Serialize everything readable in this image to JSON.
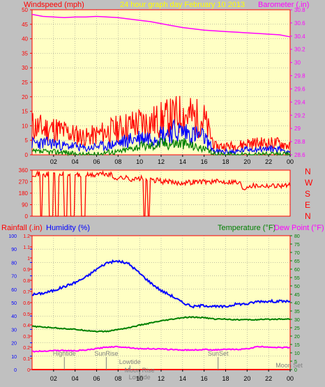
{
  "colors": {
    "background": "#c0c0c0",
    "plot_bg": "#ffffc4",
    "grid": "#808080",
    "wind_max": "#ff0000",
    "wind_avg": "#0000ff",
    "wind_min": "#008000",
    "barometer": "#ff00ff",
    "direction": "#ff0000",
    "humidity": "#0000ff",
    "temperature": "#008000",
    "dew_point": "#ff00ff",
    "rainfall": "#ff0000",
    "events": "#808080",
    "yellow": "#ffff00"
  },
  "header": {
    "windspeed": "Windspeed (mph)",
    "title": "24 hour graph day   February 10 2013",
    "barometer": "Barometer (.in)"
  },
  "labels": {
    "rainfall": "Rainfall (.in)",
    "humidity": "Humidity (%)",
    "temperature": "Temperature (°F)",
    "dew_point": "Dew Point (°F)"
  },
  "compass": [
    "N",
    "W",
    "S",
    "E",
    "N"
  ],
  "chart_data": [
    {
      "type": "line",
      "xlabel": "",
      "x_ticks": [
        "02",
        "04",
        "06",
        "08",
        "10",
        "12",
        "14",
        "16",
        "18",
        "20",
        "22",
        "00"
      ],
      "y_left_ticks": [
        "0",
        "5",
        "10",
        "15",
        "20",
        "25",
        "30",
        "35",
        "40",
        "45",
        "50"
      ],
      "y_left_range": [
        0,
        50
      ],
      "y_right_ticks": [
        "28.6",
        "28.8",
        "29",
        "29.2",
        "29.4",
        "29.6",
        "29.8",
        "30",
        "30.2",
        "30.4",
        "30.6",
        "30.8"
      ],
      "y_right_range": [
        28.6,
        30.8
      ],
      "grid": true,
      "series": [
        {
          "name": "Barometer",
          "axis": "right",
          "x": [
            0,
            1,
            2,
            3,
            4,
            5,
            6,
            7,
            8,
            9,
            10,
            11,
            12,
            13,
            14,
            15,
            16,
            17,
            18,
            19,
            20,
            21,
            22,
            23,
            24
          ],
          "y": [
            30.73,
            30.7,
            30.69,
            30.68,
            30.69,
            30.69,
            30.7,
            30.69,
            30.68,
            30.66,
            30.64,
            30.62,
            30.59,
            30.56,
            30.53,
            30.51,
            30.49,
            30.48,
            30.47,
            30.46,
            30.45,
            30.44,
            30.43,
            30.42,
            30.39
          ]
        },
        {
          "name": "Windspeed high",
          "axis": "left",
          "x": [
            0,
            1,
            2,
            3,
            4,
            5,
            6,
            7,
            8,
            9,
            10,
            11,
            12,
            13,
            14,
            15,
            16,
            17,
            18,
            19,
            20,
            21,
            22,
            23,
            24
          ],
          "y": [
            10,
            9,
            9,
            8,
            7,
            6,
            7,
            8,
            9,
            10,
            11,
            11,
            12,
            13,
            14,
            13,
            12,
            3,
            3,
            3,
            4,
            4,
            4,
            4,
            3
          ]
        },
        {
          "name": "Windspeed average",
          "axis": "left",
          "x": [
            0,
            1,
            2,
            3,
            4,
            5,
            6,
            7,
            8,
            9,
            10,
            11,
            12,
            13,
            14,
            15,
            16,
            17,
            18,
            19,
            20,
            21,
            22,
            23,
            24
          ],
          "y": [
            4,
            4,
            4,
            3,
            3,
            2,
            3,
            3,
            4,
            5,
            6,
            6,
            7,
            8,
            8,
            7,
            6,
            1,
            1,
            1,
            2,
            2,
            2,
            2,
            1
          ]
        },
        {
          "name": "Windspeed low",
          "axis": "left",
          "x": [
            0,
            1,
            2,
            3,
            4,
            5,
            6,
            7,
            8,
            9,
            10,
            11,
            12,
            13,
            14,
            15,
            16,
            17,
            18,
            19,
            20,
            21,
            22,
            23,
            24
          ],
          "y": [
            1,
            1,
            1,
            1,
            0,
            0,
            0,
            1,
            1,
            2,
            3,
            3,
            4,
            4,
            4,
            3,
            2,
            0,
            0,
            0,
            0,
            0,
            0,
            0,
            0
          ]
        }
      ]
    },
    {
      "type": "line",
      "x_ticks": [
        "02",
        "04",
        "06",
        "08",
        "10",
        "12",
        "14",
        "16",
        "18",
        "20",
        "22",
        "00"
      ],
      "y_ticks": [
        "0",
        "90",
        "180",
        "270",
        "360"
      ],
      "y_range": [
        0,
        360
      ],
      "grid": true,
      "series": [
        {
          "name": "Wind direction",
          "x": [
            0,
            0.5,
            0.8,
            1,
            1.3,
            1.6,
            2,
            2.2,
            2.5,
            2.8,
            3,
            3.3,
            3.6,
            4,
            4.3,
            4.6,
            5,
            6,
            7,
            7.5,
            8,
            9,
            10,
            10.4,
            10.6,
            10.8,
            11,
            12,
            13,
            14,
            15,
            16,
            17,
            18,
            19,
            19.5,
            20,
            21,
            22,
            23,
            24
          ],
          "y": [
            330,
            330,
            0,
            320,
            330,
            0,
            330,
            0,
            320,
            330,
            0,
            320,
            0,
            330,
            320,
            0,
            320,
            330,
            325,
            300,
            300,
            290,
            295,
            0,
            290,
            0,
            280,
            270,
            260,
            265,
            270,
            270,
            270,
            270,
            260,
            220,
            240,
            240,
            240,
            240,
            235
          ]
        }
      ]
    },
    {
      "type": "line",
      "x_ticks": [
        "02",
        "04",
        "06",
        "08",
        "10",
        "12",
        "14",
        "16",
        "18",
        "20",
        "22",
        "00"
      ],
      "y_left_ticks": [
        "0",
        "10",
        "20",
        "30",
        "40",
        "50",
        "60",
        "70",
        "80",
        "90",
        "100"
      ],
      "y_left_range": [
        0,
        100
      ],
      "y_rain_ticks": [
        "0",
        "0.1",
        "0.2",
        "0.3",
        "0.4",
        "0.5",
        "0.6",
        "0.7",
        "0.8",
        "0.9",
        "1",
        "1.1",
        "1.2"
      ],
      "y_rain_range": [
        0,
        1.2
      ],
      "y_right_ticks": [
        "0",
        "5",
        "10",
        "15",
        "20",
        "25",
        "30",
        "35",
        "40",
        "45",
        "50",
        "55",
        "60",
        "65",
        "70",
        "75",
        "80"
      ],
      "y_right_range": [
        0,
        80
      ],
      "grid": true,
      "series": [
        {
          "name": "Humidity",
          "axis": "left",
          "x": [
            0,
            1,
            2,
            3,
            4,
            5,
            6,
            7,
            8,
            9,
            10,
            11,
            12,
            13,
            14,
            15,
            16,
            17,
            18,
            19,
            20,
            21,
            22,
            23,
            24
          ],
          "y": [
            56,
            57,
            59,
            62,
            65,
            69,
            75,
            80,
            81,
            79,
            72,
            65,
            59,
            55,
            50,
            47,
            48,
            47,
            47,
            49,
            49,
            51,
            51,
            51,
            51
          ]
        },
        {
          "name": "Temperature",
          "axis": "right",
          "x": [
            0,
            1,
            2,
            3,
            4,
            5,
            6,
            7,
            8,
            9,
            10,
            11,
            12,
            13,
            14,
            15,
            16,
            17,
            18,
            19,
            20,
            21,
            22,
            23,
            24
          ],
          "y": [
            25.8,
            25.4,
            25,
            24.5,
            24,
            23.4,
            22.8,
            22.8,
            24,
            25,
            26.5,
            27.8,
            29,
            30,
            31,
            31.3,
            31,
            30.2,
            30.2,
            29.8,
            29.8,
            29.8,
            30,
            30.2,
            30.2
          ]
        },
        {
          "name": "Dew point",
          "axis": "right",
          "x": [
            0,
            1,
            2,
            3,
            4,
            5,
            6,
            7,
            8,
            9,
            10,
            11,
            12,
            13,
            14,
            15,
            16,
            17,
            18,
            19,
            20,
            21,
            22,
            23,
            24
          ],
          "y": [
            10.8,
            11,
            11.4,
            11.4,
            11.2,
            11.6,
            12.5,
            13.5,
            13.7,
            13.2,
            12.4,
            12.5,
            12.2,
            12,
            11.7,
            11.7,
            12,
            11.8,
            12,
            12,
            12.4,
            13.7,
            13.5,
            13.2,
            13.2
          ]
        },
        {
          "name": "Rainfall",
          "axis": "rain",
          "x": [
            0,
            24
          ],
          "y": [
            0,
            0
          ]
        }
      ],
      "events": [
        {
          "label": "Hightide",
          "x": 3.0
        },
        {
          "label": "SunRise",
          "x": 6.9
        },
        {
          "label": "Lowtide",
          "x": 9.1
        },
        {
          "label": "Moon Rise",
          "x": 10.0
        },
        {
          "label": "Lowtide",
          "x": 10.0
        },
        {
          "label": "SunSet",
          "x": 17.3
        },
        {
          "label": "Moon Set",
          "x": 23.9
        }
      ]
    }
  ]
}
